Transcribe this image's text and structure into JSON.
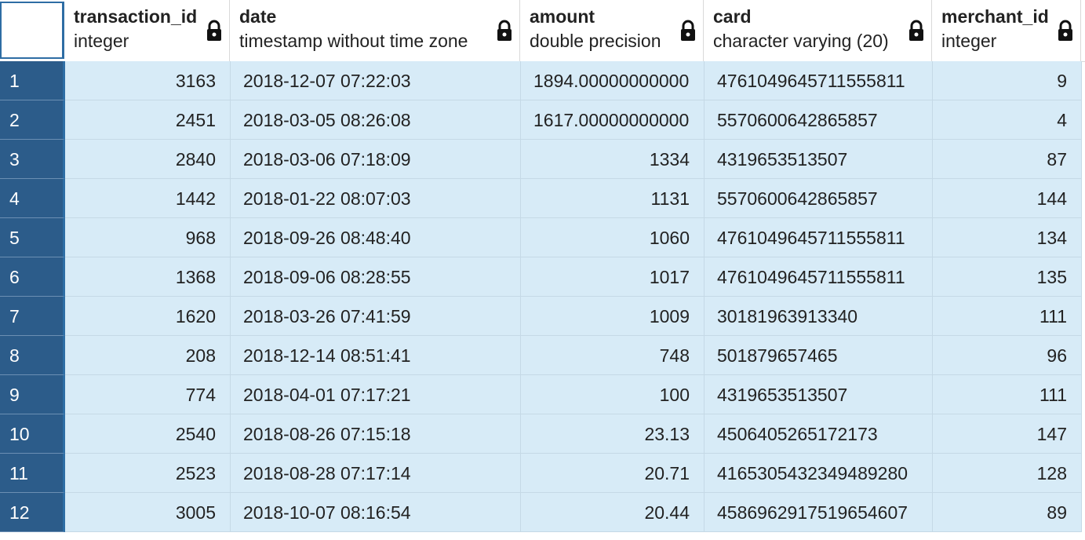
{
  "columns": [
    {
      "name": "transaction_id",
      "type": "integer",
      "locked": true,
      "icon": "lock-icon"
    },
    {
      "name": "date",
      "type": "timestamp without time zone",
      "locked": true,
      "icon": "lock-icon"
    },
    {
      "name": "amount",
      "type": "double precision",
      "locked": true,
      "icon": "lock-icon"
    },
    {
      "name": "card",
      "type": "character varying (20)",
      "locked": true,
      "icon": "lock-icon"
    },
    {
      "name": "merchant_id",
      "type": "integer",
      "locked": true,
      "icon": "lock-icon"
    }
  ],
  "rows": [
    {
      "n": "1",
      "transaction_id": "3163",
      "date": "2018-12-07 07:22:03",
      "amount": "1894.00000000000",
      "card": "4761049645711555811",
      "merchant_id": "9"
    },
    {
      "n": "2",
      "transaction_id": "2451",
      "date": "2018-03-05 08:26:08",
      "amount": "1617.00000000000",
      "card": "5570600642865857",
      "merchant_id": "4"
    },
    {
      "n": "3",
      "transaction_id": "2840",
      "date": "2018-03-06 07:18:09",
      "amount": "1334",
      "card": "4319653513507",
      "merchant_id": "87"
    },
    {
      "n": "4",
      "transaction_id": "1442",
      "date": "2018-01-22 08:07:03",
      "amount": "1131",
      "card": "5570600642865857",
      "merchant_id": "144"
    },
    {
      "n": "5",
      "transaction_id": "968",
      "date": "2018-09-26 08:48:40",
      "amount": "1060",
      "card": "4761049645711555811",
      "merchant_id": "134"
    },
    {
      "n": "6",
      "transaction_id": "1368",
      "date": "2018-09-06 08:28:55",
      "amount": "1017",
      "card": "4761049645711555811",
      "merchant_id": "135"
    },
    {
      "n": "7",
      "transaction_id": "1620",
      "date": "2018-03-26 07:41:59",
      "amount": "1009",
      "card": "30181963913340",
      "merchant_id": "111"
    },
    {
      "n": "8",
      "transaction_id": "208",
      "date": "2018-12-14 08:51:41",
      "amount": "748",
      "card": "501879657465",
      "merchant_id": "96"
    },
    {
      "n": "9",
      "transaction_id": "774",
      "date": "2018-04-01 07:17:21",
      "amount": "100",
      "card": "4319653513507",
      "merchant_id": "111"
    },
    {
      "n": "10",
      "transaction_id": "2540",
      "date": "2018-08-26 07:15:18",
      "amount": "23.13",
      "card": "4506405265172173",
      "merchant_id": "147"
    },
    {
      "n": "11",
      "transaction_id": "2523",
      "date": "2018-08-28 07:17:14",
      "amount": "20.71",
      "card": "4165305432349489280",
      "merchant_id": "128"
    },
    {
      "n": "12",
      "transaction_id": "3005",
      "date": "2018-10-07 08:16:54",
      "amount": "20.44",
      "card": "4586962917519654607",
      "merchant_id": "89"
    }
  ]
}
